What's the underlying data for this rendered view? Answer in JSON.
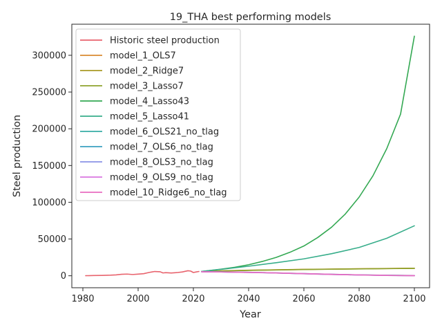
{
  "chart_data": {
    "type": "line",
    "title": "19_THA best performing models",
    "xlabel": "Year",
    "ylabel": "Steel production",
    "xlim": [
      1976.0,
      2105.5
    ],
    "ylim": [
      -16300,
      342300
    ],
    "xticks": [
      1980,
      2000,
      2020,
      2040,
      2060,
      2080,
      2100
    ],
    "yticks": [
      0,
      50000,
      100000,
      150000,
      200000,
      250000,
      300000
    ],
    "grid": false,
    "legend_position": "top-left",
    "series": [
      {
        "name": "Historic steel production",
        "color": "#e8636d",
        "x": [
          1981,
          1984,
          1987,
          1990,
          1992,
          1994,
          1996,
          1998,
          2000,
          2002,
          2004,
          2005,
          2006,
          2008,
          2009,
          2010,
          2012,
          2014,
          2016,
          2018,
          2019,
          2020,
          2021,
          2022
        ],
        "y": [
          100,
          300,
          500,
          800,
          1200,
          2000,
          2300,
          1700,
          2200,
          2800,
          4500,
          5200,
          5800,
          5400,
          3800,
          4200,
          3800,
          4300,
          5200,
          6800,
          6400,
          4400,
          5200,
          5800
        ]
      },
      {
        "name": "model_1_OLS7",
        "color": "#d98a30",
        "x": [
          2023,
          2030,
          2040,
          2050,
          2060,
          2070,
          2080,
          2090,
          2100
        ],
        "y": [
          5900,
          6700,
          7500,
          8100,
          8700,
          9100,
          9500,
          9900,
          10300
        ]
      },
      {
        "name": "model_2_Ridge7",
        "color": "#a89a24",
        "x": [
          2023,
          2030,
          2040,
          2050,
          2060,
          2070,
          2080,
          2090,
          2100
        ],
        "y": [
          5800,
          6600,
          7400,
          8000,
          8600,
          9000,
          9400,
          9800,
          10200
        ]
      },
      {
        "name": "model_3_Lasso7",
        "color": "#8ea32c",
        "x": [
          2023,
          2030,
          2040,
          2050,
          2060,
          2070,
          2080,
          2090,
          2100
        ],
        "y": [
          5800,
          6500,
          7300,
          7900,
          8500,
          8900,
          9300,
          9700,
          10000
        ]
      },
      {
        "name": "model_4_Lasso43",
        "color": "#33a852",
        "x": [
          2023,
          2030,
          2035,
          2040,
          2045,
          2050,
          2055,
          2060,
          2065,
          2070,
          2075,
          2080,
          2085,
          2090,
          2095,
          2100
        ],
        "y": [
          5900,
          9000,
          11500,
          15000,
          19500,
          25000,
          32000,
          40500,
          52000,
          66000,
          84000,
          107000,
          136000,
          173000,
          220000,
          326000
        ]
      },
      {
        "name": "model_5_Lasso41",
        "color": "#36ad8a",
        "x": [
          2023,
          2030,
          2040,
          2050,
          2060,
          2070,
          2080,
          2090,
          2100
        ],
        "y": [
          5900,
          8700,
          13000,
          17800,
          23000,
          30000,
          38500,
          51000,
          68000
        ]
      },
      {
        "name": "model_6_OLS21_no_tlag",
        "color": "#36ada4",
        "x": [
          2023,
          2030,
          2040,
          2050,
          2060,
          2070,
          2080,
          2090,
          2100
        ],
        "y": [
          5600,
          5300,
          4700,
          3900,
          2900,
          2000,
          1200,
          700,
          300
        ]
      },
      {
        "name": "model_7_OLS6_no_tlag",
        "color": "#3aa1c0",
        "x": [
          2023,
          2030,
          2040,
          2050,
          2060,
          2070,
          2080,
          2090,
          2100
        ],
        "y": [
          5500,
          5200,
          4600,
          3800,
          2800,
          1900,
          1100,
          600,
          200
        ]
      },
      {
        "name": "model_8_OLS3_no_tlag",
        "color": "#8a93e6",
        "x": [
          2023,
          2030,
          2040,
          2050,
          2060,
          2070,
          2080,
          2090,
          2100
        ],
        "y": [
          5400,
          5100,
          4500,
          3700,
          2700,
          1800,
          1000,
          500,
          100
        ]
      },
      {
        "name": "model_9_OLS9_no_tlag",
        "color": "#d974e0",
        "x": [
          2023,
          2030,
          2040,
          2050,
          2060,
          2070,
          2080,
          2090,
          2100
        ],
        "y": [
          5500,
          5200,
          4700,
          3900,
          2900,
          2000,
          1200,
          600,
          200
        ]
      },
      {
        "name": "model_10_Ridge6_no_tlag",
        "color": "#e86cc0",
        "x": [
          2023,
          2030,
          2040,
          2050,
          2060,
          2070,
          2080,
          2090,
          2100
        ],
        "y": [
          5400,
          5100,
          4600,
          3800,
          2800,
          1900,
          1100,
          500,
          100
        ]
      }
    ]
  }
}
